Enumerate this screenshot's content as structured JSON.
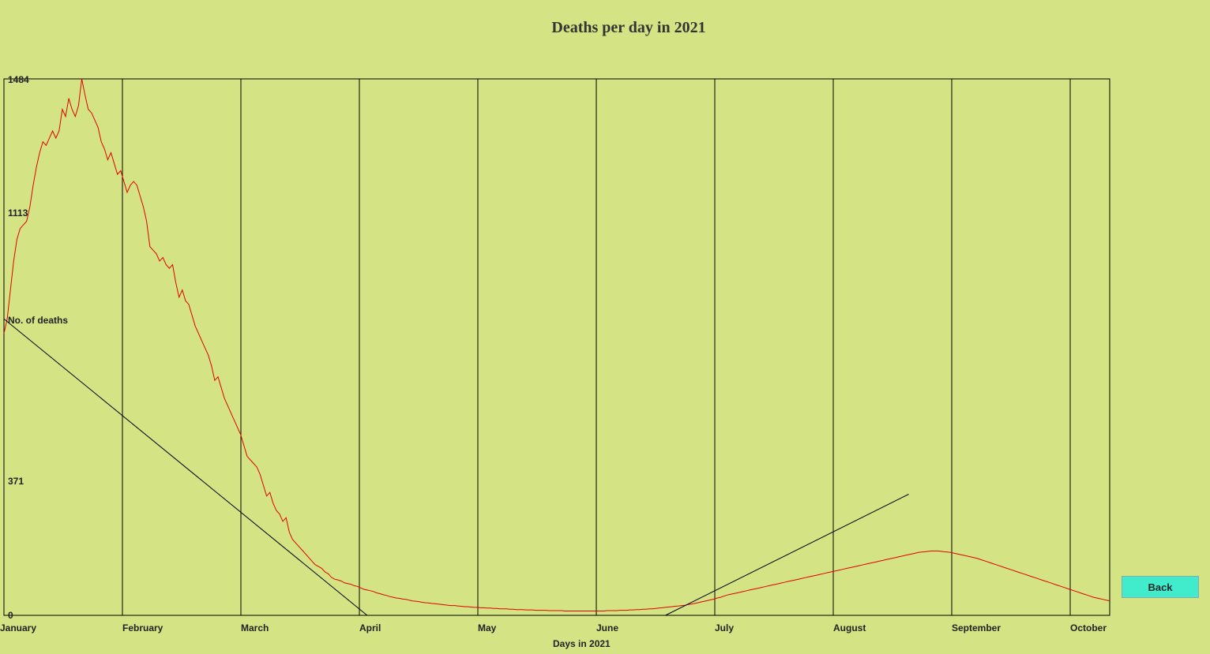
{
  "chart_data": {
    "type": "line",
    "title": "Deaths per day in 2021",
    "xlabel": "Days in 2021",
    "ylabel": "No. of deaths",
    "ylim": [
      0,
      1484
    ],
    "yticks": [
      0,
      371,
      1113,
      1484
    ],
    "months": [
      "January",
      "February",
      "March",
      "April",
      "May",
      "June",
      "July",
      "August",
      "September",
      "October"
    ],
    "grid": true,
    "series": [
      {
        "color": "#e00000",
        "values": [
          780,
          820,
          900,
          980,
          1040,
          1070,
          1080,
          1090,
          1130,
          1190,
          1240,
          1280,
          1310,
          1300,
          1320,
          1340,
          1320,
          1340,
          1400,
          1380,
          1430,
          1400,
          1380,
          1410,
          1484,
          1440,
          1400,
          1390,
          1370,
          1350,
          1310,
          1290,
          1260,
          1280,
          1250,
          1220,
          1230,
          1200,
          1170,
          1190,
          1200,
          1190,
          1160,
          1130,
          1090,
          1020,
          1010,
          1000,
          980,
          990,
          970,
          960,
          970,
          920,
          880,
          900,
          870,
          860,
          830,
          800,
          780,
          760,
          740,
          720,
          690,
          650,
          660,
          630,
          600,
          580,
          560,
          540,
          520,
          500,
          470,
          440,
          430,
          420,
          410,
          390,
          360,
          330,
          340,
          310,
          290,
          280,
          260,
          270,
          230,
          210,
          200,
          190,
          180,
          170,
          160,
          150,
          140,
          135,
          130,
          120,
          115,
          105,
          100,
          98,
          95,
          90,
          88,
          86,
          82,
          80,
          76,
          72,
          70,
          68,
          66,
          62,
          60,
          57,
          55,
          52,
          50,
          48,
          47,
          45,
          44,
          42,
          40,
          39,
          38,
          36,
          35,
          34,
          33,
          32,
          31,
          30,
          29,
          28,
          27,
          27,
          26,
          25,
          24,
          24,
          23,
          22,
          22,
          21,
          21,
          20,
          20,
          19,
          19,
          18,
          18,
          18,
          17,
          17,
          16,
          16,
          16,
          15,
          15,
          15,
          14,
          14,
          14,
          14,
          13,
          13,
          13,
          13,
          13,
          12,
          12,
          12,
          12,
          12,
          12,
          12,
          12,
          12,
          12,
          12,
          12,
          12,
          13,
          13,
          13,
          13,
          14,
          14,
          14,
          15,
          15,
          16,
          16,
          17,
          17,
          18,
          18,
          19,
          20,
          21,
          22,
          23,
          24,
          25,
          26,
          27,
          28,
          30,
          31,
          33,
          35,
          37,
          39,
          41,
          43,
          45,
          48,
          50,
          53,
          56,
          58,
          60,
          62,
          64,
          66,
          68,
          70,
          72,
          74,
          76,
          78,
          80,
          82,
          84,
          86,
          88,
          90,
          92,
          94,
          96,
          98,
          100,
          102,
          104,
          106,
          108,
          110,
          112,
          114,
          116,
          118,
          120,
          122,
          124,
          126,
          128,
          130,
          132,
          134,
          136,
          138,
          140,
          142,
          144,
          146,
          148,
          150,
          152,
          154,
          156,
          158,
          160,
          162,
          164,
          166,
          168,
          170,
          172,
          174,
          175,
          176,
          177,
          178,
          178,
          178,
          177,
          176,
          175,
          174,
          172,
          170,
          168,
          166,
          164,
          162,
          160,
          158,
          155,
          152,
          149,
          146,
          143,
          140,
          137,
          134,
          131,
          128,
          125,
          122,
          119,
          116,
          113,
          110,
          107,
          104,
          101,
          98,
          95,
          92,
          89,
          86,
          83,
          80,
          77,
          74,
          71,
          68,
          65,
          62,
          59,
          56,
          53,
          50,
          48,
          46,
          44,
          42,
          40
        ]
      },
      {
        "name": "",
        "color": "#000000",
        "values": [
          820,
          0
        ]
      }
    ],
    "trend_left": {
      "x0_day": 1,
      "y0": 820,
      "x1_day": 113,
      "y1": 0
    },
    "trend_right": {
      "x0_day": 205,
      "y0": 0,
      "x1_day": 280,
      "y1": 335
    }
  },
  "button": {
    "back_label": "Back"
  }
}
